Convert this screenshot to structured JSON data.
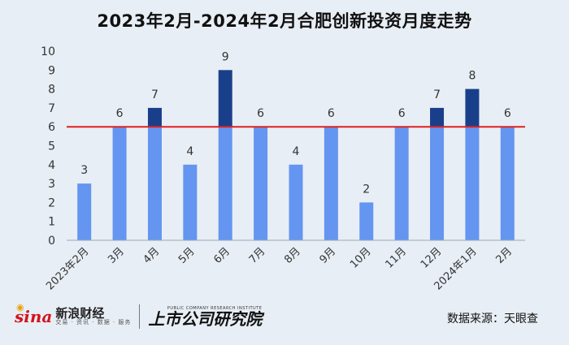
{
  "chart_data": {
    "type": "bar",
    "title": "2023年2月-2024年2月合肥创新投资月度走势",
    "categories": [
      "2023年2月",
      "3月",
      "4月",
      "5月",
      "6月",
      "7月",
      "8月",
      "9月",
      "10月",
      "11月",
      "12月",
      "2024年1月",
      "2月"
    ],
    "values": [
      3,
      6,
      7,
      4,
      9,
      6,
      4,
      6,
      2,
      6,
      7,
      8,
      6
    ],
    "ylim": [
      0,
      10
    ],
    "yticks": [
      0,
      1,
      2,
      3,
      4,
      5,
      6,
      7,
      8,
      9,
      10
    ],
    "reference_line": 6,
    "colors": {
      "bar": "#6495f0",
      "bar_above": "#1a3f8a",
      "reference_line": "#e0201e",
      "axis": "#9aa8b8"
    },
    "xlabel": "",
    "ylabel": "",
    "grid": false
  },
  "branding": {
    "sina_logo": "sina",
    "sina_name": "新浪财经",
    "sina_sub": "交易 · 资讯 · 数据 · 服务",
    "institute_en": "PUBLIC COMPANY RESEARCH INSTITUTE",
    "institute_cn": "上市公司研究院"
  },
  "source": "数据来源：天眼查"
}
